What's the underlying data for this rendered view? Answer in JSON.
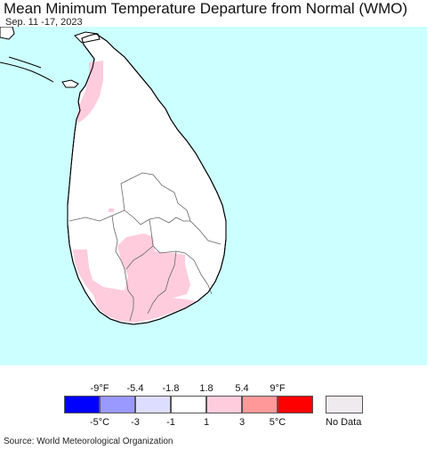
{
  "header": {
    "title": "Mean Minimum Temperature Departure from Normal (WMO)",
    "date_range": "Sep. 11 -17, 2023"
  },
  "map": {
    "ocean_color": "#ccffff",
    "land_color": "#ffffff",
    "warm_anomaly_color": "#ffccdd"
  },
  "legend": {
    "fahrenheit_labels": [
      "-9°F",
      "-5.4",
      "-1.8",
      "1.8",
      "5.4",
      "9°F"
    ],
    "celsius_labels": [
      "-5°C",
      "-3",
      "-1",
      "1",
      "3",
      "5°C"
    ],
    "colors": [
      "#0000ff",
      "#9999ff",
      "#ddddff",
      "#ffffff",
      "#ffccdd",
      "#ff9999",
      "#ff0000"
    ],
    "no_data_label": "No Data",
    "no_data_color": "#eeeaee"
  },
  "footer": {
    "source": "Source: World Meteorological Organization"
  }
}
